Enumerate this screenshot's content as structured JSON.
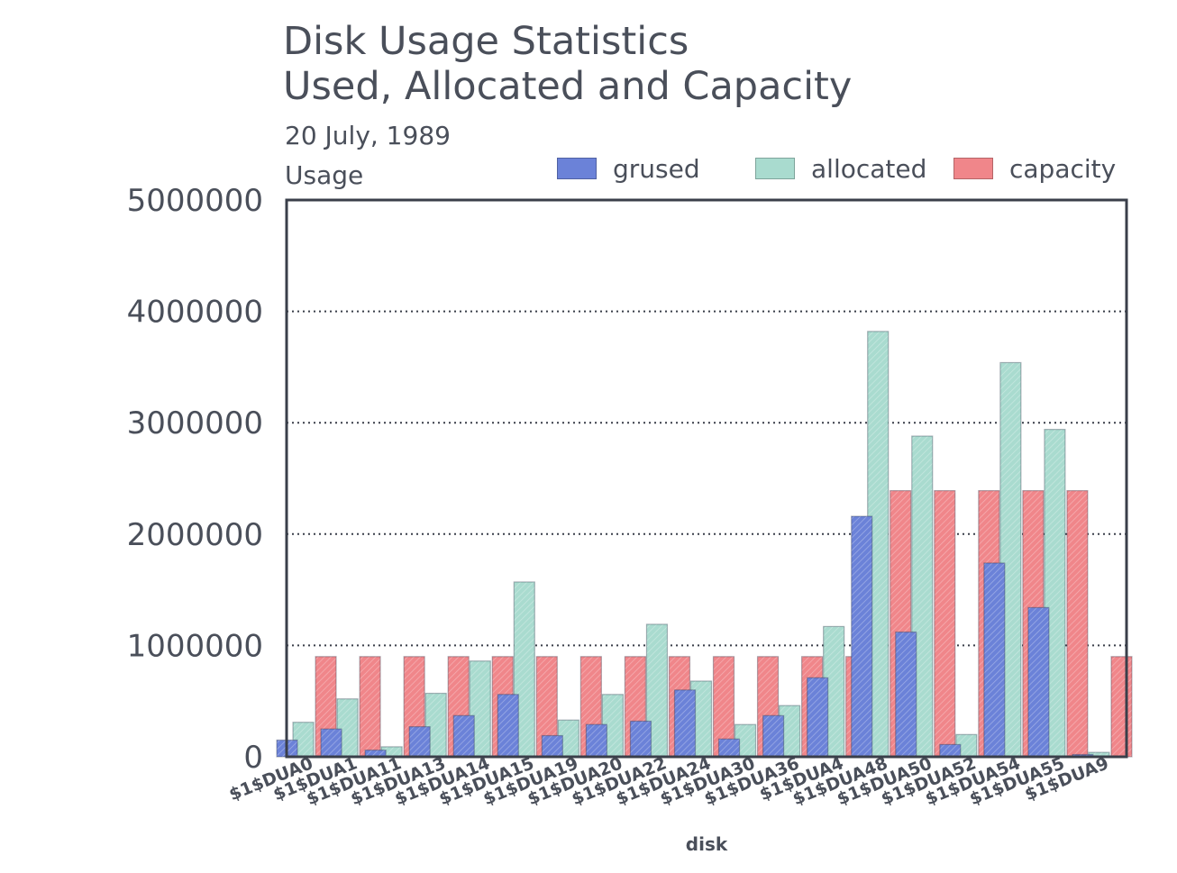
{
  "chart_data": {
    "type": "bar",
    "title": "Disk Usage Statistics",
    "subtitle": "Used, Allocated and Capacity",
    "date": "20 July, 1989",
    "ylabel": "Usage",
    "xlabel": "disk",
    "ylim": [
      0,
      5000000
    ],
    "yticks": [
      "0",
      "1000000",
      "2000000",
      "3000000",
      "4000000",
      "5000000"
    ],
    "grid": true,
    "legend_position": "top-right",
    "categories": [
      "$1$DUA0",
      "$1$DUA1",
      "$1$DUA11",
      "$1$DUA13",
      "$1$DUA14",
      "$1$DUA15",
      "$1$DUA19",
      "$1$DUA20",
      "$1$DUA22",
      "$1$DUA24",
      "$1$DUA30",
      "$1$DUA36",
      "$1$DUA4",
      "$1$DUA48",
      "$1$DUA50",
      "$1$DUA52",
      "$1$DUA54",
      "$1$DUA55",
      "$1$DUA9"
    ],
    "series": [
      {
        "name": "grused",
        "color": "#6b82d8",
        "values": [
          150000,
          250000,
          60000,
          270000,
          370000,
          560000,
          190000,
          290000,
          320000,
          600000,
          160000,
          370000,
          710000,
          2160000,
          1120000,
          110000,
          1740000,
          1340000,
          20000
        ]
      },
      {
        "name": "allocated",
        "color": "#a9dbcf",
        "values": [
          310000,
          520000,
          90000,
          570000,
          860000,
          1570000,
          330000,
          560000,
          1190000,
          680000,
          290000,
          460000,
          1170000,
          3820000,
          2880000,
          200000,
          3540000,
          2940000,
          40000
        ]
      },
      {
        "name": "capacity",
        "color": "#f0868a",
        "values": [
          900000,
          900000,
          900000,
          900000,
          900000,
          900000,
          900000,
          900000,
          900000,
          900000,
          900000,
          900000,
          900000,
          2390000,
          2390000,
          2390000,
          2390000,
          2390000,
          900000
        ]
      }
    ]
  }
}
